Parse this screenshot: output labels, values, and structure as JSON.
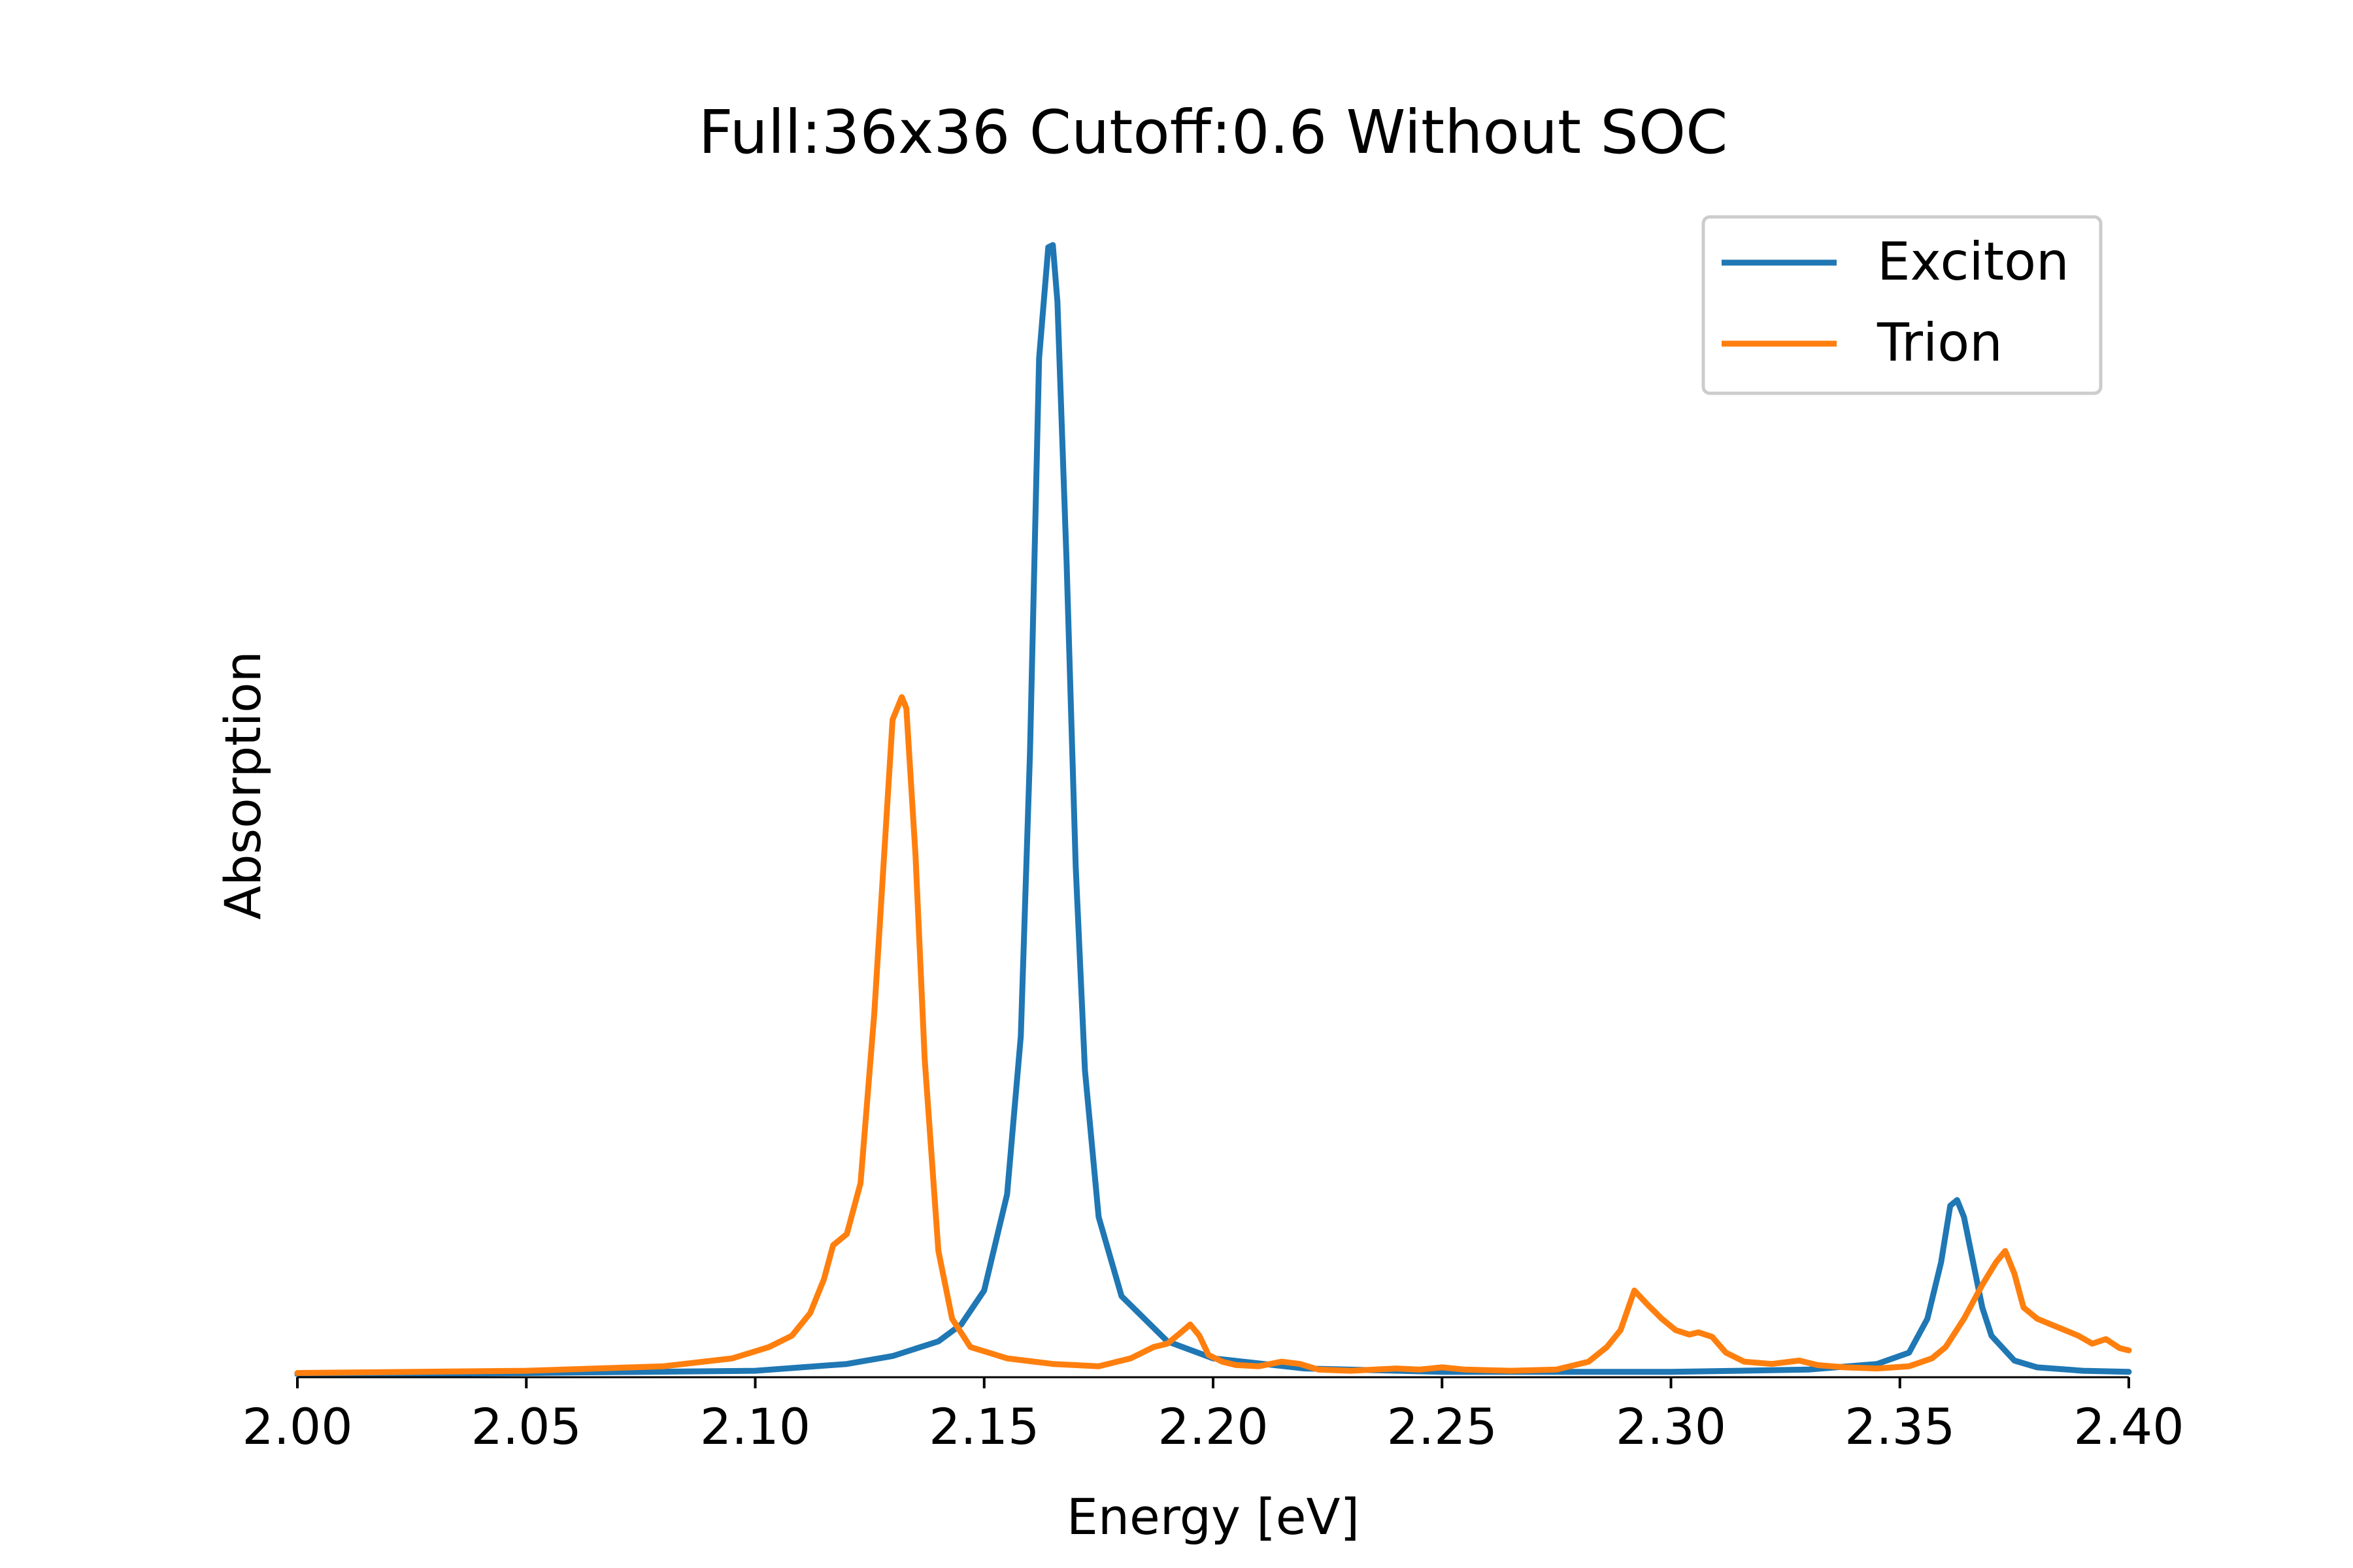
{
  "chart_data": {
    "type": "line",
    "title": "Full:36x36 Cutoff:0.6 Without SOC",
    "xlabel": "Energy [eV]",
    "ylabel": "Absorption",
    "xlim": [
      2.0,
      2.4
    ],
    "ylim": [
      0,
      1.0
    ],
    "x_ticks": [
      "2.00",
      "2.05",
      "2.10",
      "2.15",
      "2.20",
      "2.25",
      "2.30",
      "2.35",
      "2.40"
    ],
    "y_ticks_shown": false,
    "grid": false,
    "legend_position": "top-right",
    "series": [
      {
        "name": "Exciton",
        "color": "#1f77b4",
        "x": [
          2.0,
          2.05,
          2.1,
          2.12,
          2.13,
          2.14,
          2.145,
          2.15,
          2.155,
          2.158,
          2.16,
          2.162,
          2.164,
          2.165,
          2.166,
          2.168,
          2.17,
          2.172,
          2.175,
          2.18,
          2.19,
          2.2,
          2.22,
          2.25,
          2.3,
          2.33,
          2.345,
          2.352,
          2.356,
          2.359,
          2.361,
          2.3625,
          2.364,
          2.366,
          2.368,
          2.37,
          2.375,
          2.38,
          2.39,
          2.4
        ],
        "y": [
          0.001,
          0.002,
          0.004,
          0.01,
          0.017,
          0.03,
          0.045,
          0.075,
          0.16,
          0.3,
          0.55,
          0.9,
          0.998,
          1.0,
          0.95,
          0.72,
          0.45,
          0.27,
          0.14,
          0.07,
          0.03,
          0.015,
          0.006,
          0.003,
          0.003,
          0.005,
          0.01,
          0.02,
          0.05,
          0.1,
          0.15,
          0.155,
          0.14,
          0.1,
          0.06,
          0.035,
          0.013,
          0.007,
          0.004,
          0.003
        ]
      },
      {
        "name": "Trion",
        "color": "#ff7f0e",
        "x": [
          2.0,
          2.05,
          2.08,
          2.095,
          2.103,
          2.108,
          2.112,
          2.115,
          2.117,
          2.12,
          2.123,
          2.126,
          2.128,
          2.13,
          2.132,
          2.133,
          2.135,
          2.137,
          2.14,
          2.143,
          2.147,
          2.155,
          2.165,
          2.175,
          2.182,
          2.187,
          2.19,
          2.193,
          2.195,
          2.197,
          2.199,
          2.202,
          2.205,
          2.21,
          2.215,
          2.219,
          2.223,
          2.23,
          2.24,
          2.245,
          2.25,
          2.255,
          2.265,
          2.275,
          2.282,
          2.286,
          2.289,
          2.292,
          2.295,
          2.298,
          2.301,
          2.304,
          2.306,
          2.309,
          2.312,
          2.316,
          2.322,
          2.328,
          2.332,
          2.338,
          2.345,
          2.352,
          2.357,
          2.36,
          2.364,
          2.368,
          2.371,
          2.373,
          2.375,
          2.377,
          2.38,
          2.383,
          2.386,
          2.389,
          2.392,
          2.395,
          2.398,
          2.4
        ],
        "y": [
          0.002,
          0.004,
          0.008,
          0.015,
          0.025,
          0.035,
          0.055,
          0.085,
          0.115,
          0.125,
          0.17,
          0.32,
          0.45,
          0.58,
          0.6,
          0.59,
          0.46,
          0.28,
          0.11,
          0.05,
          0.025,
          0.015,
          0.01,
          0.008,
          0.015,
          0.025,
          0.028,
          0.038,
          0.045,
          0.035,
          0.018,
          0.012,
          0.009,
          0.008,
          0.012,
          0.01,
          0.005,
          0.004,
          0.006,
          0.005,
          0.007,
          0.005,
          0.004,
          0.005,
          0.012,
          0.025,
          0.04,
          0.075,
          0.062,
          0.05,
          0.04,
          0.036,
          0.038,
          0.034,
          0.02,
          0.012,
          0.01,
          0.013,
          0.009,
          0.007,
          0.006,
          0.008,
          0.015,
          0.025,
          0.05,
          0.08,
          0.1,
          0.11,
          0.09,
          0.06,
          0.05,
          0.045,
          0.04,
          0.035,
          0.028,
          0.032,
          0.024,
          0.022
        ]
      }
    ]
  }
}
